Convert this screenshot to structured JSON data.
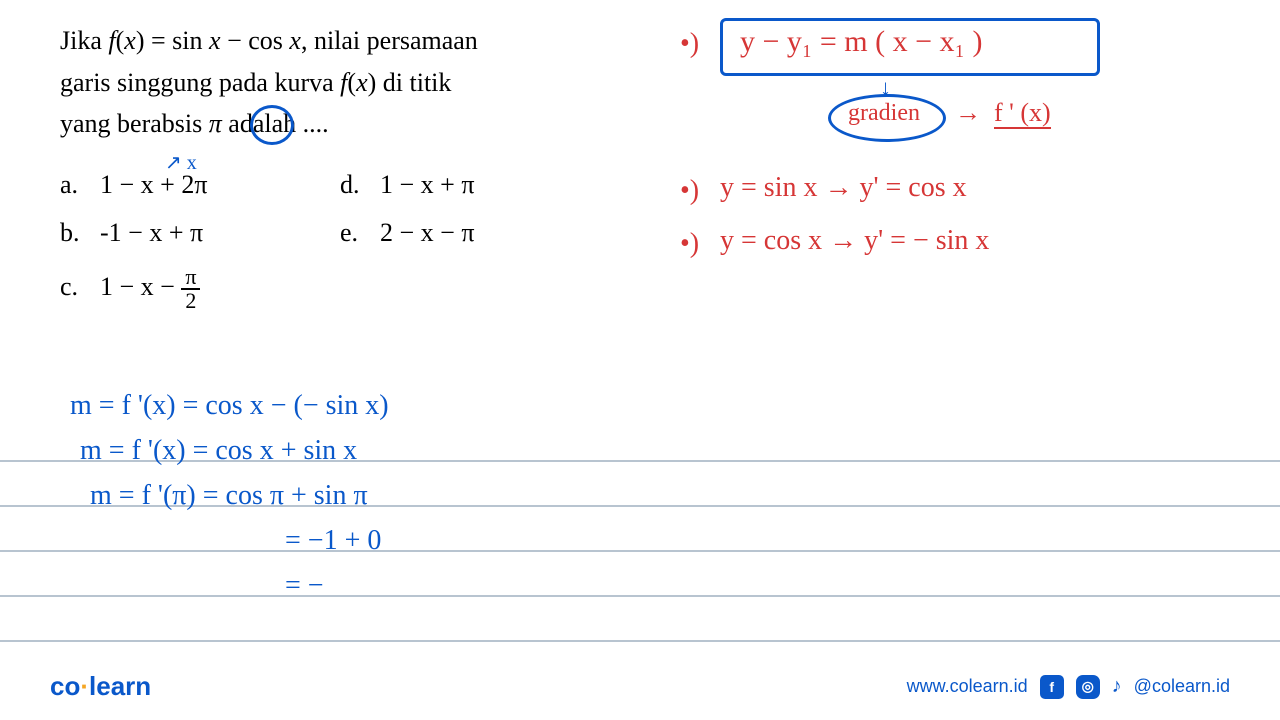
{
  "problem": {
    "line1_a": "Jika ",
    "line1_b": "f",
    "line1_c": "(",
    "line1_d": "x",
    "line1_e": ") = sin ",
    "line1_f": "x",
    "line1_g": " − cos ",
    "line1_h": "x",
    "line1_i": ", nilai persamaan",
    "line2_a": "garis singgung pada kurva ",
    "line2_b": "f",
    "line2_c": "(",
    "line2_d": "x",
    "line2_e": ") di titik",
    "line3_a": "yang berabsis ",
    "line3_b": "π",
    "line3_c": " adalah ...."
  },
  "options": {
    "a_label": "a.",
    "a_val": "1 − x + 2π",
    "b_label": "b.",
    "b_val": "-1 − x + π",
    "c_label": "c.",
    "c_val_pre": "1 − x − ",
    "c_num": "π",
    "c_den": "2",
    "d_label": "d.",
    "d_val": "1 − x + π",
    "e_label": "e.",
    "e_val": "2 − x − π"
  },
  "arrow_x": "↗ x",
  "red": {
    "bullet1": "•)",
    "formula": "y − y₁ = m ( x − x₁ )",
    "gradien": "gradien",
    "grad_arrow": "→  f ' (x)",
    "bullet2": "•)",
    "deriv1": "y = sin x → y' = cos x",
    "bullet3": "•)",
    "deriv2": "y = cos x → y' = − sin x"
  },
  "blue": {
    "l1": "m = f '(x) = cos x − (− sin x)",
    "l2": "m = f '(x) = cos x + sin x",
    "l3": "m = f '(π) = cos π + sin π",
    "l4": "= −1 + 0",
    "l5": "= −"
  },
  "footer": {
    "logo_co": "co",
    "logo_dot": "·",
    "logo_learn": "learn",
    "url": "www.colearn.id",
    "handle": "@colearn.id"
  },
  "ruled_lines": [
    460,
    505,
    550,
    595,
    640
  ]
}
